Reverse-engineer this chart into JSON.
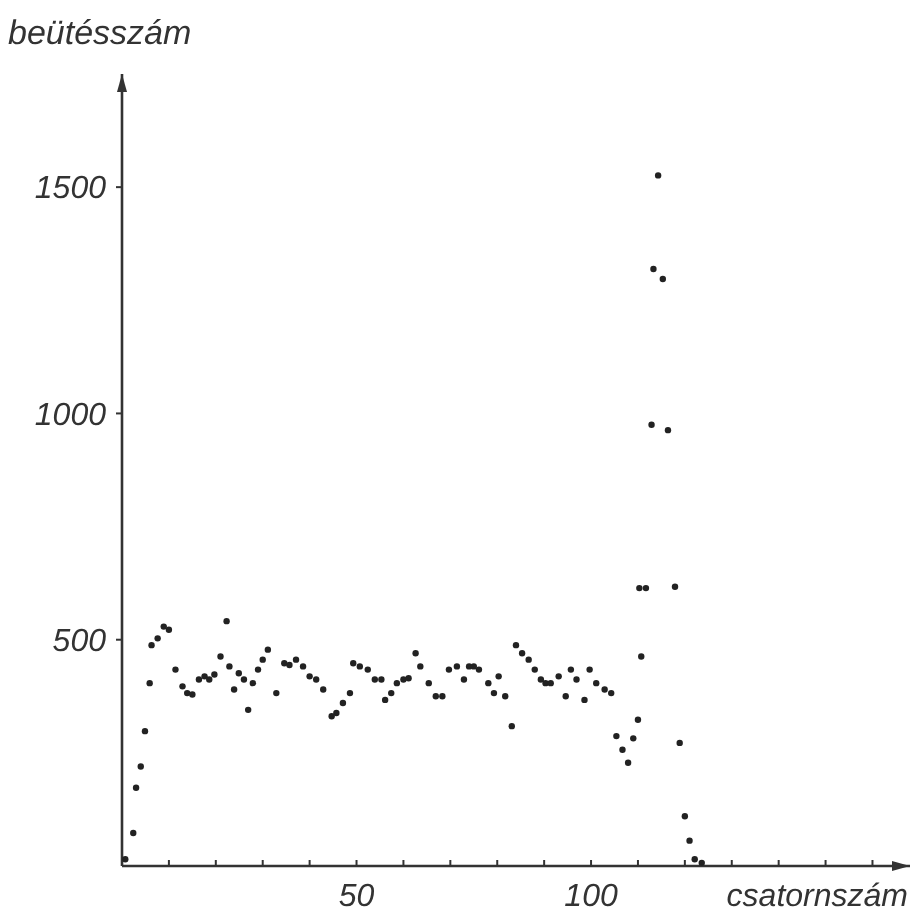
{
  "chart_data": {
    "type": "scatter",
    "xlabel": "csatornszám",
    "ylabel": "beütésszám",
    "marker": "circle",
    "grid": false,
    "xlim": [
      0,
      168
    ],
    "ylim": [
      0,
      1750
    ],
    "xticks": [
      {
        "value": 10,
        "label": null
      },
      {
        "value": 20,
        "label": null
      },
      {
        "value": 30,
        "label": null
      },
      {
        "value": 40,
        "label": null
      },
      50,
      {
        "value": 60,
        "label": null
      },
      {
        "value": 70,
        "label": null
      },
      {
        "value": 80,
        "label": null
      },
      {
        "value": 90,
        "label": null
      },
      100,
      {
        "value": 110,
        "label": null
      },
      {
        "value": 120,
        "label": null
      },
      {
        "value": 130,
        "label": null
      },
      {
        "value": 140,
        "label": null
      },
      {
        "value": 150,
        "label": null
      },
      {
        "value": 160,
        "label": null
      }
    ],
    "yticks": [
      500,
      1000,
      1500
    ],
    "series": [
      {
        "color": "#222222",
        "x": [
          0.7,
          2.4,
          3,
          4,
          4.9,
          5.9,
          6.3,
          7.6,
          8.9,
          10,
          11.4,
          12.9,
          13.9,
          15,
          16.4,
          17.6,
          18.6,
          19.7,
          21,
          22.3,
          22.9,
          23.9,
          24.9,
          26,
          26.9,
          27.9,
          29,
          30,
          31.1,
          32.9,
          34.6,
          35.7,
          37.1,
          38.6,
          40,
          41.4,
          42.9,
          44.7,
          45.7,
          47.1,
          48.6,
          49.3,
          50.7,
          52.4,
          53.9,
          55.3,
          56.1,
          57.4,
          58.6,
          60,
          61.1,
          62.6,
          63.6,
          65.4,
          66.9,
          68.3,
          69.7,
          71.4,
          72.9,
          74,
          75,
          76.1,
          78.1,
          79.3,
          80.3,
          81.7,
          83.1,
          84,
          85.3,
          86.7,
          88,
          89.3,
          90.3,
          91.4,
          93.1,
          94.6,
          95.7,
          96.9,
          98.6,
          99.7,
          101.1,
          102.9,
          104.3,
          105.4,
          106.7,
          107.9,
          109,
          110,
          110.7,
          110.3,
          111.7,
          112.9,
          113.3,
          114.3,
          115.3,
          116.4,
          117.9,
          118.9,
          120,
          121,
          122.1,
          123.6
        ],
        "values": [
          15,
          73,
          173,
          220,
          298,
          404,
          488,
          503,
          529,
          522,
          434,
          397,
          382,
          379,
          412,
          419,
          412,
          423,
          463,
          541,
          441,
          390,
          426,
          412,
          345,
          404,
          434,
          456,
          478,
          382,
          448,
          444,
          456,
          441,
          419,
          412,
          390,
          331,
          338,
          360,
          382,
          448,
          441,
          434,
          412,
          412,
          367,
          382,
          404,
          412,
          415,
          470,
          441,
          404,
          375,
          375,
          434,
          441,
          412,
          441,
          441,
          434,
          404,
          382,
          419,
          375,
          309,
          488,
          470,
          456,
          434,
          412,
          404,
          404,
          419,
          375,
          434,
          412,
          367,
          434,
          404,
          390,
          382,
          287,
          257,
          228,
          282,
          323,
          463,
          614,
          614,
          975,
          1319,
          1526,
          1297,
          963,
          617,
          272,
          110,
          56,
          15,
          7
        ]
      }
    ]
  }
}
